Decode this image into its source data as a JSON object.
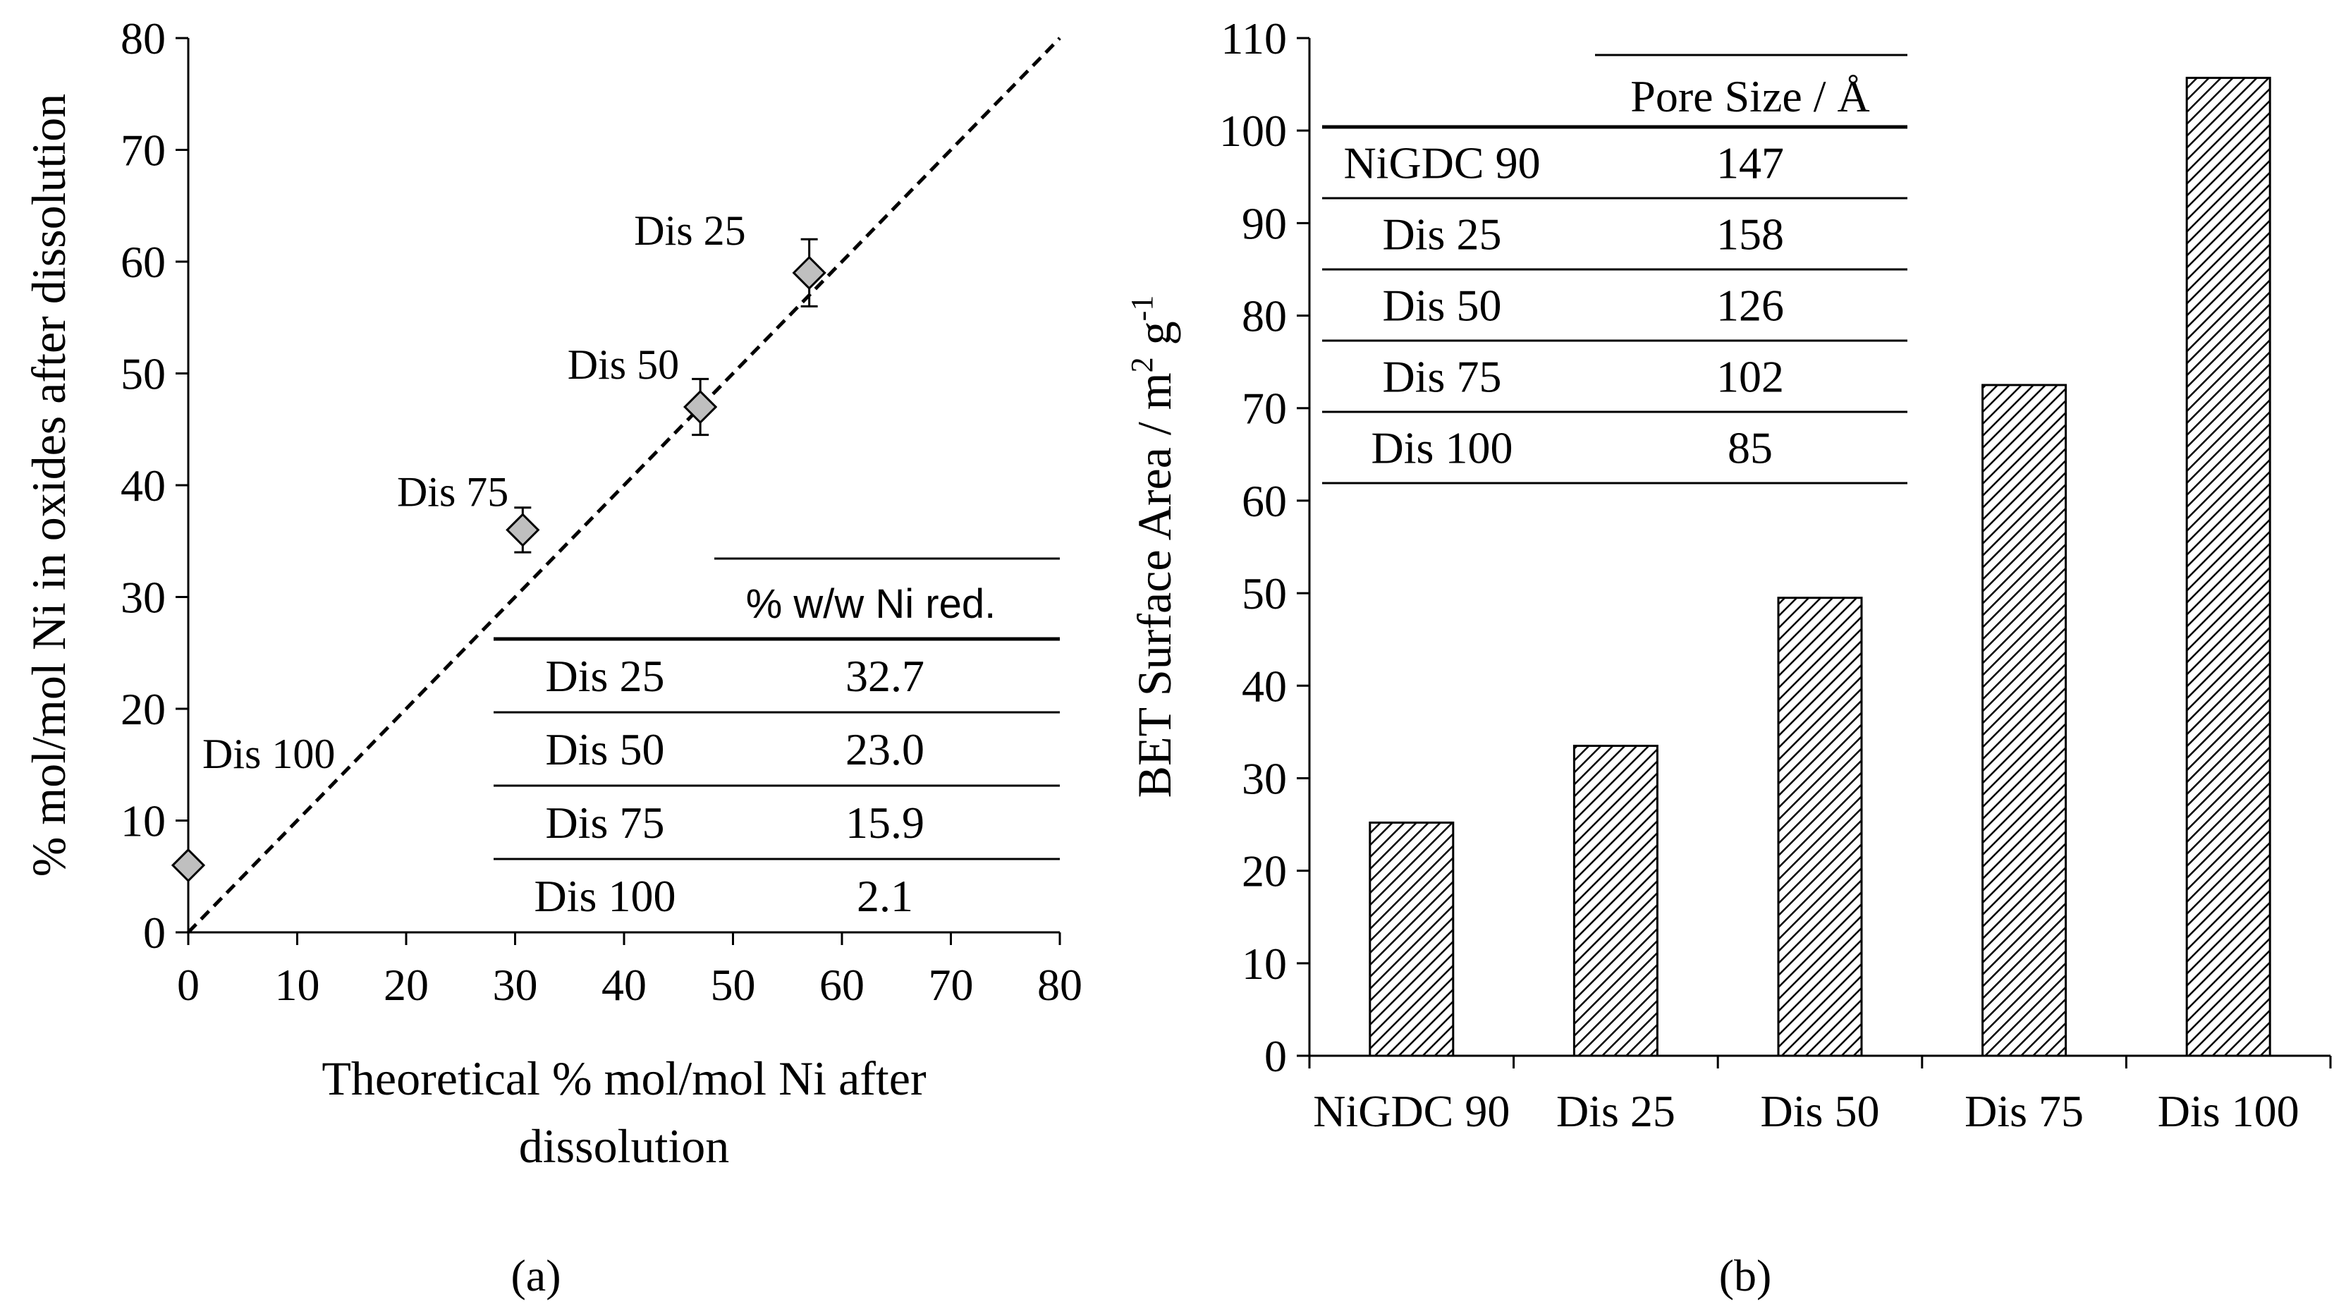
{
  "chart_data": [
    {
      "panel": "a",
      "caption": "(a)",
      "type": "scatter",
      "xlabel": "Theoretical % mol/mol Ni after dissolution",
      "xlabel_lines": [
        "Theoretical % mol/mol Ni after",
        "dissolution"
      ],
      "ylabel": "% mol/mol Ni in oxides after dissolution",
      "xlim": [
        0,
        80
      ],
      "ylim": [
        0,
        80
      ],
      "xticks": [
        0,
        10,
        20,
        30,
        40,
        50,
        60,
        70,
        80
      ],
      "yticks": [
        0,
        10,
        20,
        30,
        40,
        50,
        60,
        70,
        80
      ],
      "grid": false,
      "reference_line": {
        "type": "y=x",
        "style": "dashed",
        "from": [
          0,
          0
        ],
        "to": [
          80,
          80
        ]
      },
      "series": [
        {
          "name": "samples",
          "marker": "diamond",
          "points": [
            {
              "label": "Dis 25",
              "x": 57,
              "y": 59,
              "err": 3
            },
            {
              "label": "Dis 50",
              "x": 47,
              "y": 47,
              "err": 2.5
            },
            {
              "label": "Dis 75",
              "x": 30.7,
              "y": 36,
              "err": 2
            },
            {
              "label": "Dis 100",
              "x": 0,
              "y": 6,
              "err": 0
            }
          ]
        }
      ],
      "inset_table": {
        "header": [
          "",
          "% w/w Ni red."
        ],
        "rows": [
          [
            "Dis 25",
            "32.7"
          ],
          [
            "Dis 50",
            "23.0"
          ],
          [
            "Dis 75",
            "15.9"
          ],
          [
            "Dis 100",
            "2.1"
          ]
        ]
      }
    },
    {
      "panel": "b",
      "caption": "(b)",
      "type": "bar",
      "categories": [
        "NiGDC 90",
        "Dis 25",
        "Dis 50",
        "Dis 75",
        "Dis 100"
      ],
      "values": [
        25.2,
        33.5,
        49.5,
        72.5,
        105.7
      ],
      "ylabel": "BET Surface Area / m² g⁻¹",
      "ylabel_parts": {
        "base": "BET Surface Area / m",
        "sup1": "2",
        "mid": " g",
        "sup2": "-1"
      },
      "xlabel": "",
      "ylim": [
        0,
        110
      ],
      "yticks": [
        0,
        10,
        20,
        30,
        40,
        50,
        60,
        70,
        80,
        90,
        100,
        110
      ],
      "grid": false,
      "bar_fill": "diagonal-hatch",
      "inset_table": {
        "header": [
          "",
          "Pore Size / Å"
        ],
        "rows": [
          [
            "NiGDC 90",
            "147"
          ],
          [
            "Dis 25",
            "158"
          ],
          [
            "Dis 50",
            "126"
          ],
          [
            "Dis 75",
            "102"
          ],
          [
            "Dis 100",
            "85"
          ]
        ]
      }
    }
  ],
  "colors": {
    "ink": "#000000",
    "marker_fill": "#bfbfbf",
    "background": "#ffffff"
  }
}
